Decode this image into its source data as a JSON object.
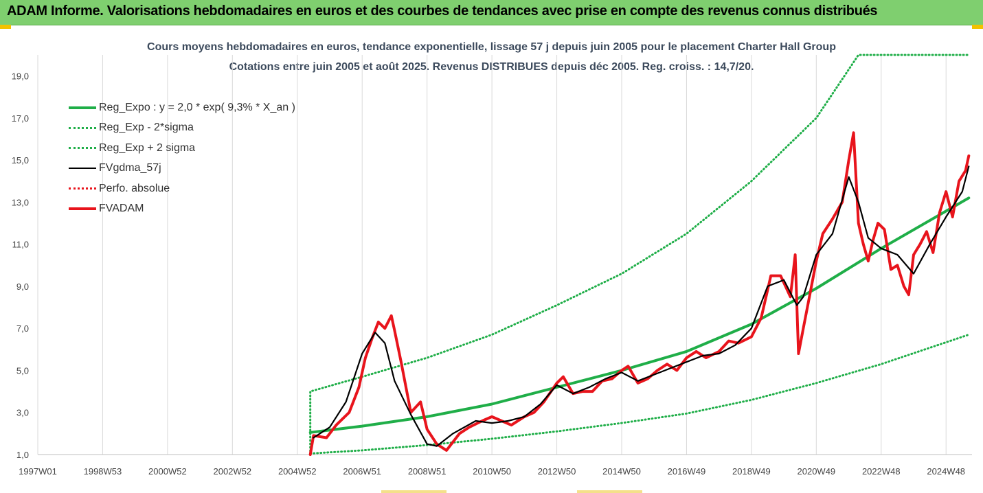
{
  "banner": {
    "title": "ADAM Informe. Valorisations hebdomadaires en euros et des courbes de tendances avec prise en compte des revenus connus distribués"
  },
  "chart_data": {
    "type": "line",
    "title": "Cours moyens hebdomadaires en euros, tendance exponentielle, lissage 57 j depuis juin 2005 pour le placement Charter Hall Group",
    "subtitle": "Cotations entre juin 2005 et août 2025. Revenus DISTRIBUES depuis déc 2005. Reg. croiss. : 14,7/20.",
    "xlabel": "",
    "ylabel": "",
    "x_range": [
      1997.0,
      2025.8
    ],
    "ylim": [
      1.0,
      20.0
    ],
    "y_ticks": [
      "1,0",
      "3,0",
      "5,0",
      "7,0",
      "9,0",
      "11,0",
      "13,0",
      "15,0",
      "17,0",
      "19,0"
    ],
    "x_ticks": [
      {
        "label": "1997W01",
        "x": 1997.0
      },
      {
        "label": "1998W53",
        "x": 1999.0
      },
      {
        "label": "2000W52",
        "x": 2001.0
      },
      {
        "label": "2002W52",
        "x": 2003.0
      },
      {
        "label": "2004W52",
        "x": 2005.0
      },
      {
        "label": "2006W51",
        "x": 2007.0
      },
      {
        "label": "2008W51",
        "x": 2009.0
      },
      {
        "label": "2010W50",
        "x": 2011.0
      },
      {
        "label": "2012W50",
        "x": 2013.0
      },
      {
        "label": "2014W50",
        "x": 2015.0
      },
      {
        "label": "2016W49",
        "x": 2017.0
      },
      {
        "label": "2018W49",
        "x": 2019.0
      },
      {
        "label": "2020W49",
        "x": 2021.0
      },
      {
        "label": "2022W48",
        "x": 2023.0
      },
      {
        "label": "2024W48",
        "x": 2025.0
      }
    ],
    "grid": "vertical",
    "legend_position": "top-left",
    "series": [
      {
        "name": "Reg_Expo : y = 2,0 * exp( 9,3% *  X_an )",
        "color": "#1fae48",
        "style": "solid-thick",
        "x": [
          2005.4,
          2007,
          2009,
          2011,
          2013,
          2015,
          2017,
          2019,
          2021,
          2023,
          2025.7
        ],
        "y": [
          2.05,
          2.35,
          2.8,
          3.4,
          4.2,
          5.0,
          5.9,
          7.2,
          8.9,
          10.8,
          13.2
        ]
      },
      {
        "name": "Reg_Exp - 2*sigma",
        "color": "#1fae48",
        "style": "dotted",
        "x": [
          2005.4,
          2007,
          2009,
          2011,
          2013,
          2015,
          2017,
          2019,
          2021,
          2023,
          2025.7
        ],
        "y": [
          1.05,
          1.2,
          1.45,
          1.75,
          2.1,
          2.5,
          2.95,
          3.6,
          4.4,
          5.3,
          6.7
        ]
      },
      {
        "name": "Reg_Exp + 2 sigma",
        "color": "#1fae48",
        "style": "dotted",
        "x": [
          2005.4,
          2005.4,
          2007,
          2009,
          2011,
          2013,
          2015,
          2017,
          2019,
          2021,
          2022.3,
          2023,
          2025.7
        ],
        "y": [
          1.0,
          4.0,
          4.7,
          5.6,
          6.7,
          8.1,
          9.6,
          11.5,
          14.0,
          17.0,
          20.0,
          20.0,
          20.0
        ]
      },
      {
        "name": "FVgdma_57j",
        "color": "#000000",
        "style": "solid",
        "x": [
          2005.5,
          2006.0,
          2006.5,
          2007.0,
          2007.4,
          2007.7,
          2008.0,
          2008.5,
          2009.0,
          2009.3,
          2009.8,
          2010.5,
          2011.0,
          2011.5,
          2012.0,
          2012.5,
          2013.0,
          2013.5,
          2014.0,
          2014.5,
          2015.0,
          2015.5,
          2016.0,
          2016.5,
          2017.0,
          2017.5,
          2018.0,
          2018.5,
          2019.0,
          2019.5,
          2020.0,
          2020.4,
          2020.6,
          2021.0,
          2021.5,
          2022.0,
          2022.3,
          2022.6,
          2023.0,
          2023.5,
          2024.0,
          2024.5,
          2025.0,
          2025.5,
          2025.7
        ],
        "y": [
          1.8,
          2.3,
          3.5,
          5.8,
          6.8,
          6.3,
          4.5,
          2.9,
          1.5,
          1.4,
          2.0,
          2.6,
          2.5,
          2.6,
          2.8,
          3.4,
          4.3,
          3.9,
          4.2,
          4.6,
          4.9,
          4.5,
          4.8,
          5.1,
          5.4,
          5.7,
          5.8,
          6.2,
          7.0,
          9.0,
          9.3,
          8.1,
          8.5,
          10.5,
          11.5,
          14.2,
          13.0,
          11.3,
          10.8,
          10.5,
          9.6,
          11.0,
          12.3,
          13.5,
          14.7
        ]
      },
      {
        "name": "Perfo. absolue",
        "color": "#e8141c",
        "style": "dotted",
        "x": [],
        "y": []
      },
      {
        "name": "FVADAM",
        "color": "#e8141c",
        "style": "solid-thick",
        "x": [
          2005.4,
          2005.5,
          2005.9,
          2006.2,
          2006.6,
          2006.9,
          2007.1,
          2007.3,
          2007.5,
          2007.7,
          2007.9,
          2008.0,
          2008.2,
          2008.5,
          2008.8,
          2009.0,
          2009.3,
          2009.6,
          2010.0,
          2010.3,
          2010.7,
          2011.0,
          2011.3,
          2011.6,
          2012.0,
          2012.3,
          2012.6,
          2013.0,
          2013.2,
          2013.5,
          2013.8,
          2014.1,
          2014.4,
          2014.7,
          2015.0,
          2015.2,
          2015.5,
          2015.8,
          2016.1,
          2016.4,
          2016.7,
          2017.0,
          2017.3,
          2017.6,
          2018.0,
          2018.3,
          2018.6,
          2019.0,
          2019.3,
          2019.6,
          2019.9,
          2020.2,
          2020.35,
          2020.45,
          2020.6,
          2020.8,
          2021.0,
          2021.2,
          2021.5,
          2021.8,
          2022.0,
          2022.15,
          2022.3,
          2022.45,
          2022.6,
          2022.75,
          2022.9,
          2023.1,
          2023.3,
          2023.5,
          2023.7,
          2023.85,
          2024.0,
          2024.2,
          2024.4,
          2024.6,
          2024.8,
          2025.0,
          2025.2,
          2025.4,
          2025.6,
          2025.7
        ],
        "y": [
          1.0,
          1.9,
          1.8,
          2.4,
          3.0,
          4.2,
          5.6,
          6.5,
          7.3,
          7.0,
          7.6,
          6.9,
          5.4,
          3.0,
          3.5,
          2.2,
          1.5,
          1.2,
          2.0,
          2.3,
          2.6,
          2.8,
          2.6,
          2.4,
          2.8,
          3.0,
          3.5,
          4.4,
          4.7,
          3.9,
          4.0,
          4.0,
          4.5,
          4.6,
          5.0,
          5.2,
          4.4,
          4.6,
          5.0,
          5.3,
          5.0,
          5.6,
          5.9,
          5.6,
          5.9,
          6.4,
          6.3,
          6.6,
          7.5,
          9.5,
          9.5,
          8.5,
          10.5,
          5.8,
          7.0,
          8.6,
          10.2,
          11.5,
          12.2,
          13.0,
          15.0,
          16.3,
          12.0,
          11.0,
          10.2,
          11.2,
          12.0,
          11.7,
          9.8,
          10.0,
          9.0,
          8.6,
          10.5,
          11.0,
          11.6,
          10.6,
          12.5,
          13.5,
          12.3,
          14.0,
          14.5,
          15.2
        ]
      }
    ]
  }
}
